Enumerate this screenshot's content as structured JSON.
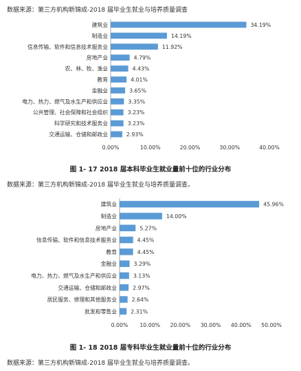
{
  "sources": {
    "top": "数据来源：第三方机构新锦成-2018 届毕业生就业与培养质量调查",
    "middle": "数据来源：第三方机构新锦成-2018 届毕业生就业与培养质量调查。",
    "bottom": "数据来源：第三方机构新锦成-2018 届毕业生就业与培养质量调查。"
  },
  "chart_data": [
    {
      "type": "bar",
      "orientation": "horizontal",
      "caption": "图 1- 17    2018 届本科毕业生就业量前十位的行业分布",
      "categories": [
        "建筑业",
        "制造业",
        "信息传输、软件和信息技术服务业",
        "房地产业",
        "农、林、牧、渔业",
        "教育",
        "金融业",
        "电力、热力、燃气及水生产和供应业",
        "公共管理、社会保障和社会组织",
        "科学研究和技术服务业",
        "交通运输、仓储和邮政业"
      ],
      "values": [
        34.19,
        14.19,
        11.92,
        4.79,
        4.43,
        4.01,
        3.65,
        3.35,
        3.23,
        3.23,
        2.93
      ],
      "labels": [
        "34.19%",
        "14.19%",
        "11.92%",
        "4.79%",
        "4.43%",
        "4.01%",
        "3.65%",
        "3.35%",
        "3.23%",
        "3.23%",
        "2.93%"
      ],
      "xticks": [
        "0.00%",
        "10.00%",
        "20.00%",
        "30.00%",
        "40.00%"
      ],
      "xlim": [
        0,
        40
      ],
      "bar_color": "#5b9bd5",
      "grid": false
    },
    {
      "type": "bar",
      "orientation": "horizontal",
      "caption": "图 1- 18    2018 届专科毕业生就业量前十位的行业分布",
      "categories": [
        "建筑业",
        "制造业",
        "房地产业",
        "信息传输、软件和信息技术服务业",
        "教育",
        "金融业",
        "电力、热力、燃气及水生产和供应业",
        "交通运输、仓储和邮政业",
        "居民服务、修理和其他服务业",
        "批发和零售业"
      ],
      "values": [
        45.96,
        14.0,
        5.27,
        4.45,
        4.45,
        3.29,
        3.13,
        2.97,
        2.64,
        2.31
      ],
      "labels": [
        "45.96%",
        "14.00%",
        "5.27%",
        "4.45%",
        "4.45%",
        "3.29%",
        "3.13%",
        "2.97%",
        "2.64%",
        "2.31%"
      ],
      "xticks": [
        "0.00%",
        "10.00%",
        "20.00%",
        "30.00%",
        "40.00%",
        "50.00%"
      ],
      "xlim": [
        0,
        50
      ],
      "bar_color": "#5b9bd5",
      "grid": false
    }
  ]
}
